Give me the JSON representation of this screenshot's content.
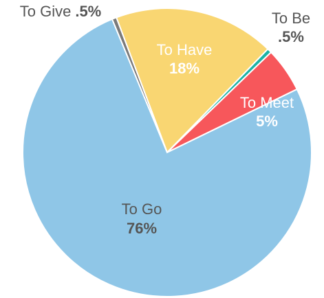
{
  "chart_data": {
    "type": "pie",
    "categories": [
      "To Have",
      "To Be",
      "To Meet",
      "To Go",
      "To Give"
    ],
    "values": [
      18,
      0.5,
      5,
      76,
      0.5
    ],
    "value_labels": [
      "18%",
      ".5%",
      "5%",
      "76%",
      ".5%"
    ],
    "colors": [
      "#f9d672",
      "#1bb3a6",
      "#f7575b",
      "#8fc6e7",
      "#7a7a7a"
    ]
  }
}
